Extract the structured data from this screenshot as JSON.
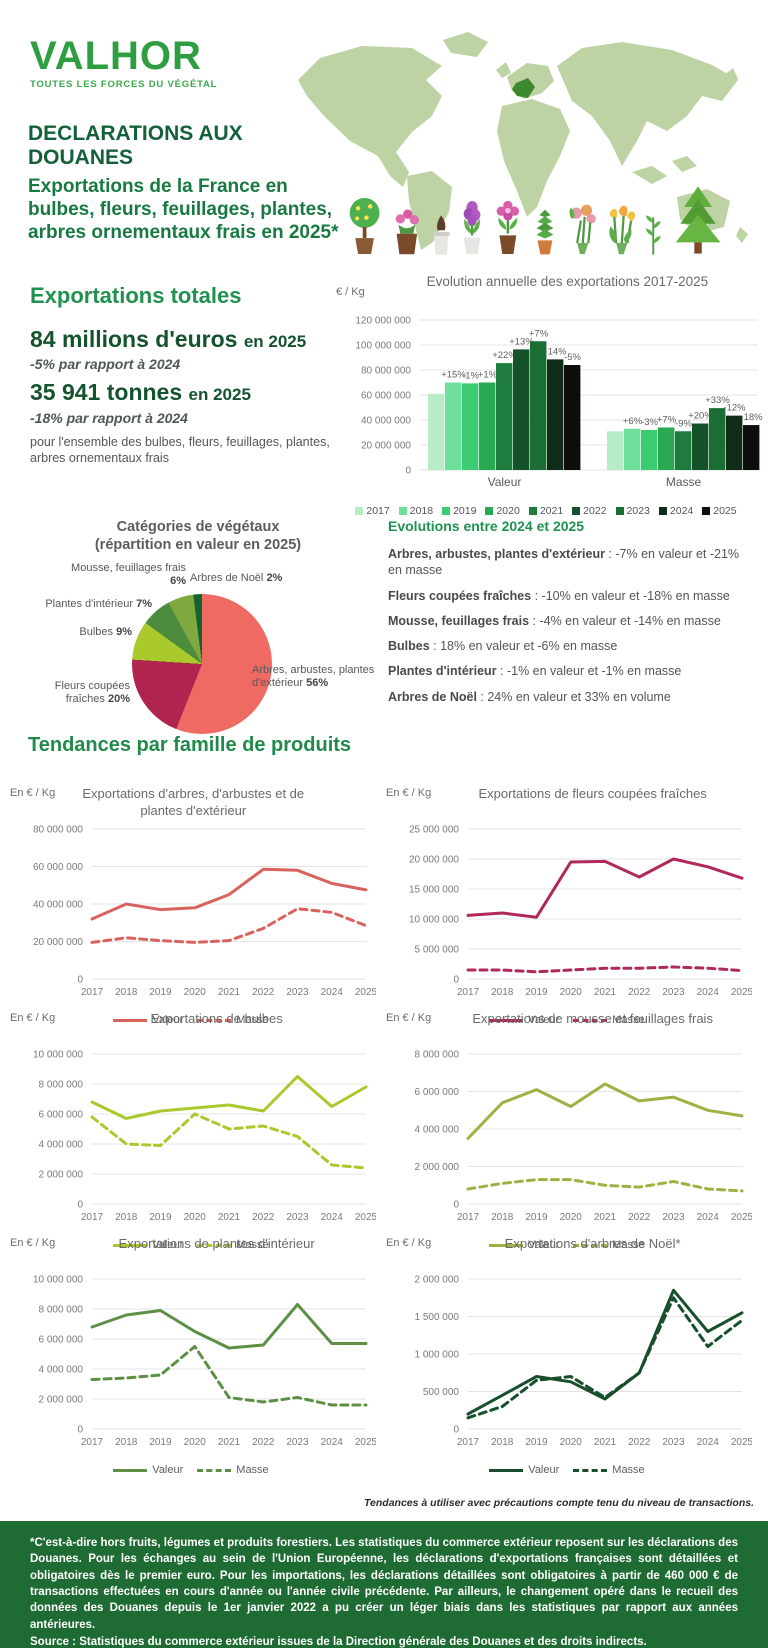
{
  "header": {
    "logo": "VALHOR",
    "tagline": "TOUTES LES FORCES DU VÉGÉTAL",
    "title": "DECLARATIONS AUX DOUANES",
    "subtitle": "Exportations de la France en bulbes, fleurs, feuillages, plantes, arbres ornementaux frais en 2025*"
  },
  "totals": {
    "heading": "Exportations totales",
    "value_main": "84 millions d'euros",
    "value_year": "en 2025",
    "value_change": "-5% par rapport à 2024",
    "mass_main": "35 941 tonnes",
    "mass_year": "en 2025",
    "mass_change": "-18% par rapport à 2024",
    "scope": "pour l'ensemble des bulbes, fleurs, feuillages, plantes, arbres ornementaux frais"
  },
  "evolutions": {
    "heading": "Evolutions entre 2024 et 2025",
    "items": [
      {
        "label": "Arbres, arbustes, plantes d'extérieur",
        "text": " : -7% en valeur et -21% en masse"
      },
      {
        "label": "Fleurs coupées fraîches",
        "text": " : -10% en valeur et -18% en masse"
      },
      {
        "label": "Mousse, feuillages frais",
        "text": " : -4% en valeur et -14% en masse"
      },
      {
        "label": "Bulbes",
        "text": " : 18% en valeur et -6% en masse"
      },
      {
        "label": "Plantes d'intérieur",
        "text": " : -1% en valeur et -1% en masse"
      },
      {
        "label": "Arbres de Noël",
        "text": " : 24% en valeur et 33% en volume"
      }
    ]
  },
  "tendances_heading": "Tendances par famille de produits",
  "note": "Tendances à utiliser avec précautions compte tenu du niveau de transactions.",
  "footer": {
    "note": "*C'est-à-dire hors fruits, légumes et produits forestiers. Les statistiques du commerce extérieur reposent sur les déclarations des Douanes. Pour les échanges au sein de l'Union Européenne, les déclarations d'exportations françaises sont détaillées et obligatoires dès le premier euro. Pour les importations, les déclarations détaillées sont obligatoires à partir de 460 000 € de transactions effectuées en cours d'année ou l'année civile précédente. Par ailleurs, le changement opéré dans le recueil des données des Douanes depuis le 1er janvier 2022 a pu créer un léger biais dans les statistiques par rapport aux années antérieures.",
    "source": "Source : Statistiques du commerce extérieur issues de la Direction générale des Douanes et des droits indirects."
  },
  "chart_data": [
    {
      "id": "annual-evolution",
      "type": "bar",
      "title": "Evolution annuelle des exportations 2017-2025",
      "unit_label": "€ / Kg",
      "years": [
        "2017",
        "2018",
        "2019",
        "2020",
        "2021",
        "2022",
        "2023",
        "2024",
        "2025"
      ],
      "year_colors": [
        "#b7ecc6",
        "#6fe09b",
        "#3bcc6f",
        "#2aa953",
        "#1e7d3e",
        "#14532a",
        "#1a6e33",
        "#0e2c18",
        "#0b0e0b"
      ],
      "ylim": [
        0,
        120000000
      ],
      "ytick_step": 20000000,
      "groups": [
        {
          "label": "Valeur",
          "values": [
            61000000,
            70000000,
            69300000,
            70000000,
            85500000,
            96500000,
            103000000,
            88500000,
            84000000
          ],
          "pct_labels": [
            "",
            "+15%",
            "-1%",
            "+1%",
            "+22%",
            "+13%",
            "+7%",
            "-14%",
            "-5%"
          ]
        },
        {
          "label": "Masse",
          "values": [
            31000000,
            33000000,
            32000000,
            34000000,
            31000000,
            37200000,
            49500000,
            43500000,
            35941000
          ],
          "pct_labels": [
            "",
            "+6%",
            "-3%",
            "+7%",
            "-9%",
            "+20%",
            "+33%",
            "-12%",
            "-18%"
          ]
        }
      ]
    },
    {
      "id": "categories-pie",
      "type": "pie",
      "title_line1": "Catégories de végétaux",
      "title_line2": "(répartition en valeur en 2025)",
      "slices": [
        {
          "label": "Arbres, arbustes, plantes d'extérieur",
          "pct": 56,
          "pct_label": "56%",
          "color": "#ee6a63"
        },
        {
          "label": "Fleurs coupées fraîches",
          "pct": 20,
          "pct_label": "20%",
          "color": "#b02450"
        },
        {
          "label": "Bulbes",
          "pct": 9,
          "pct_label": "9%",
          "color": "#a9c92d"
        },
        {
          "label": "Plantes d'intérieur",
          "pct": 7,
          "pct_label": "7%",
          "color": "#4d8c3c"
        },
        {
          "label": "Mousse, feuillages frais",
          "pct": 6,
          "pct_label": "6%",
          "color": "#7fa83e"
        },
        {
          "label": "Arbres de Noël",
          "pct": 2,
          "pct_label": "2%",
          "color": "#17632f"
        }
      ]
    },
    {
      "id": "arbres-arbustes",
      "type": "line",
      "unit_label": "En € / Kg",
      "title": "Exportations d'arbres, d'arbustes et de plantes d'extérieur",
      "color": "#d9625e",
      "x": [
        "2017",
        "2018",
        "2019",
        "2020",
        "2021",
        "2022",
        "2023",
        "2024",
        "2025"
      ],
      "ylim": [
        0,
        80000000
      ],
      "ytick_step": 20000000,
      "series": [
        {
          "name": "Valeur",
          "style": "solid",
          "values": [
            32000000,
            40000000,
            37000000,
            38000000,
            45000000,
            58500000,
            58000000,
            51000000,
            47500000
          ]
        },
        {
          "name": "Masse",
          "style": "dashed",
          "values": [
            19500000,
            22000000,
            20500000,
            19500000,
            20500000,
            27000000,
            37500000,
            35500000,
            28500000
          ]
        }
      ]
    },
    {
      "id": "fleurs-coupees",
      "type": "line",
      "unit_label": "En € / Kg",
      "title": "Exportations de fleurs coupées fraîches",
      "color": "#b0285c",
      "x": [
        "2017",
        "2018",
        "2019",
        "2020",
        "2021",
        "2022",
        "2023",
        "2024",
        "2025"
      ],
      "ylim": [
        0,
        25000000
      ],
      "ytick_step": 5000000,
      "series": [
        {
          "name": "Valeur",
          "style": "solid",
          "values": [
            10600000,
            11000000,
            10300000,
            19500000,
            19600000,
            17000000,
            20000000,
            18700000,
            16800000
          ]
        },
        {
          "name": "Masse",
          "style": "dashed",
          "values": [
            1500000,
            1500000,
            1200000,
            1500000,
            1800000,
            1800000,
            2000000,
            1800000,
            1400000
          ]
        }
      ]
    },
    {
      "id": "bulbes",
      "type": "line",
      "unit_label": "En € / Kg",
      "title": "Exportations de bulbes",
      "color": "#a9c92d",
      "x": [
        "2017",
        "2018",
        "2019",
        "2020",
        "2021",
        "2022",
        "2023",
        "2024",
        "2025"
      ],
      "ylim": [
        0,
        10000000
      ],
      "ytick_step": 2000000,
      "series": [
        {
          "name": "Valeur",
          "style": "solid",
          "values": [
            6800000,
            5700000,
            6200000,
            6400000,
            6600000,
            6200000,
            8500000,
            6500000,
            7800000
          ]
        },
        {
          "name": "Masse",
          "style": "dashed",
          "values": [
            5800000,
            4000000,
            3900000,
            6000000,
            5000000,
            5200000,
            4500000,
            2600000,
            2400000
          ]
        }
      ]
    },
    {
      "id": "mousse-feuillages",
      "type": "line",
      "unit_label": "En € / Kg",
      "title": "Exportations de mousse et feuillages frais",
      "color": "#9cb344",
      "x": [
        "2017",
        "2018",
        "2019",
        "2020",
        "2021",
        "2022",
        "2023",
        "2024",
        "2025"
      ],
      "ylim": [
        0,
        8000000
      ],
      "ytick_step": 2000000,
      "series": [
        {
          "name": "Valeur",
          "style": "solid",
          "values": [
            3500000,
            5400000,
            6100000,
            5200000,
            6400000,
            5500000,
            5700000,
            5000000,
            4700000
          ]
        },
        {
          "name": "Masse",
          "style": "dashed",
          "values": [
            800000,
            1100000,
            1300000,
            1300000,
            1000000,
            900000,
            1200000,
            800000,
            700000
          ]
        }
      ]
    },
    {
      "id": "plantes-interieur",
      "type": "line",
      "unit_label": "En € / Kg",
      "title": "Exportations de plantes d'intérieur",
      "color": "#5d9044",
      "x": [
        "2017",
        "2018",
        "2019",
        "2020",
        "2021",
        "2022",
        "2023",
        "2024",
        "2025"
      ],
      "ylim": [
        0,
        10000000
      ],
      "ytick_step": 2000000,
      "series": [
        {
          "name": "Valeur",
          "style": "solid",
          "values": [
            6800000,
            7600000,
            7900000,
            6500000,
            5400000,
            5600000,
            8300000,
            5700000,
            5700000
          ]
        },
        {
          "name": "Masse",
          "style": "dashed",
          "values": [
            3300000,
            3400000,
            3600000,
            5500000,
            2100000,
            1800000,
            2100000,
            1600000,
            1600000
          ]
        }
      ]
    },
    {
      "id": "arbres-noel",
      "type": "line",
      "unit_label": "En € / Kg",
      "title": "Exportations d'arbres de Noël*",
      "color": "#174f2c",
      "x": [
        "2017",
        "2018",
        "2019",
        "2020",
        "2021",
        "2022",
        "2023",
        "2024",
        "2025"
      ],
      "ylim": [
        0,
        2000000
      ],
      "ytick_step": 500000,
      "series": [
        {
          "name": "Valeur",
          "style": "solid",
          "values": [
            200000,
            450000,
            700000,
            630000,
            400000,
            750000,
            1850000,
            1300000,
            1550000
          ]
        },
        {
          "name": "Masse",
          "style": "dashed",
          "values": [
            150000,
            300000,
            650000,
            700000,
            420000,
            750000,
            1750000,
            1100000,
            1450000
          ]
        }
      ]
    }
  ]
}
